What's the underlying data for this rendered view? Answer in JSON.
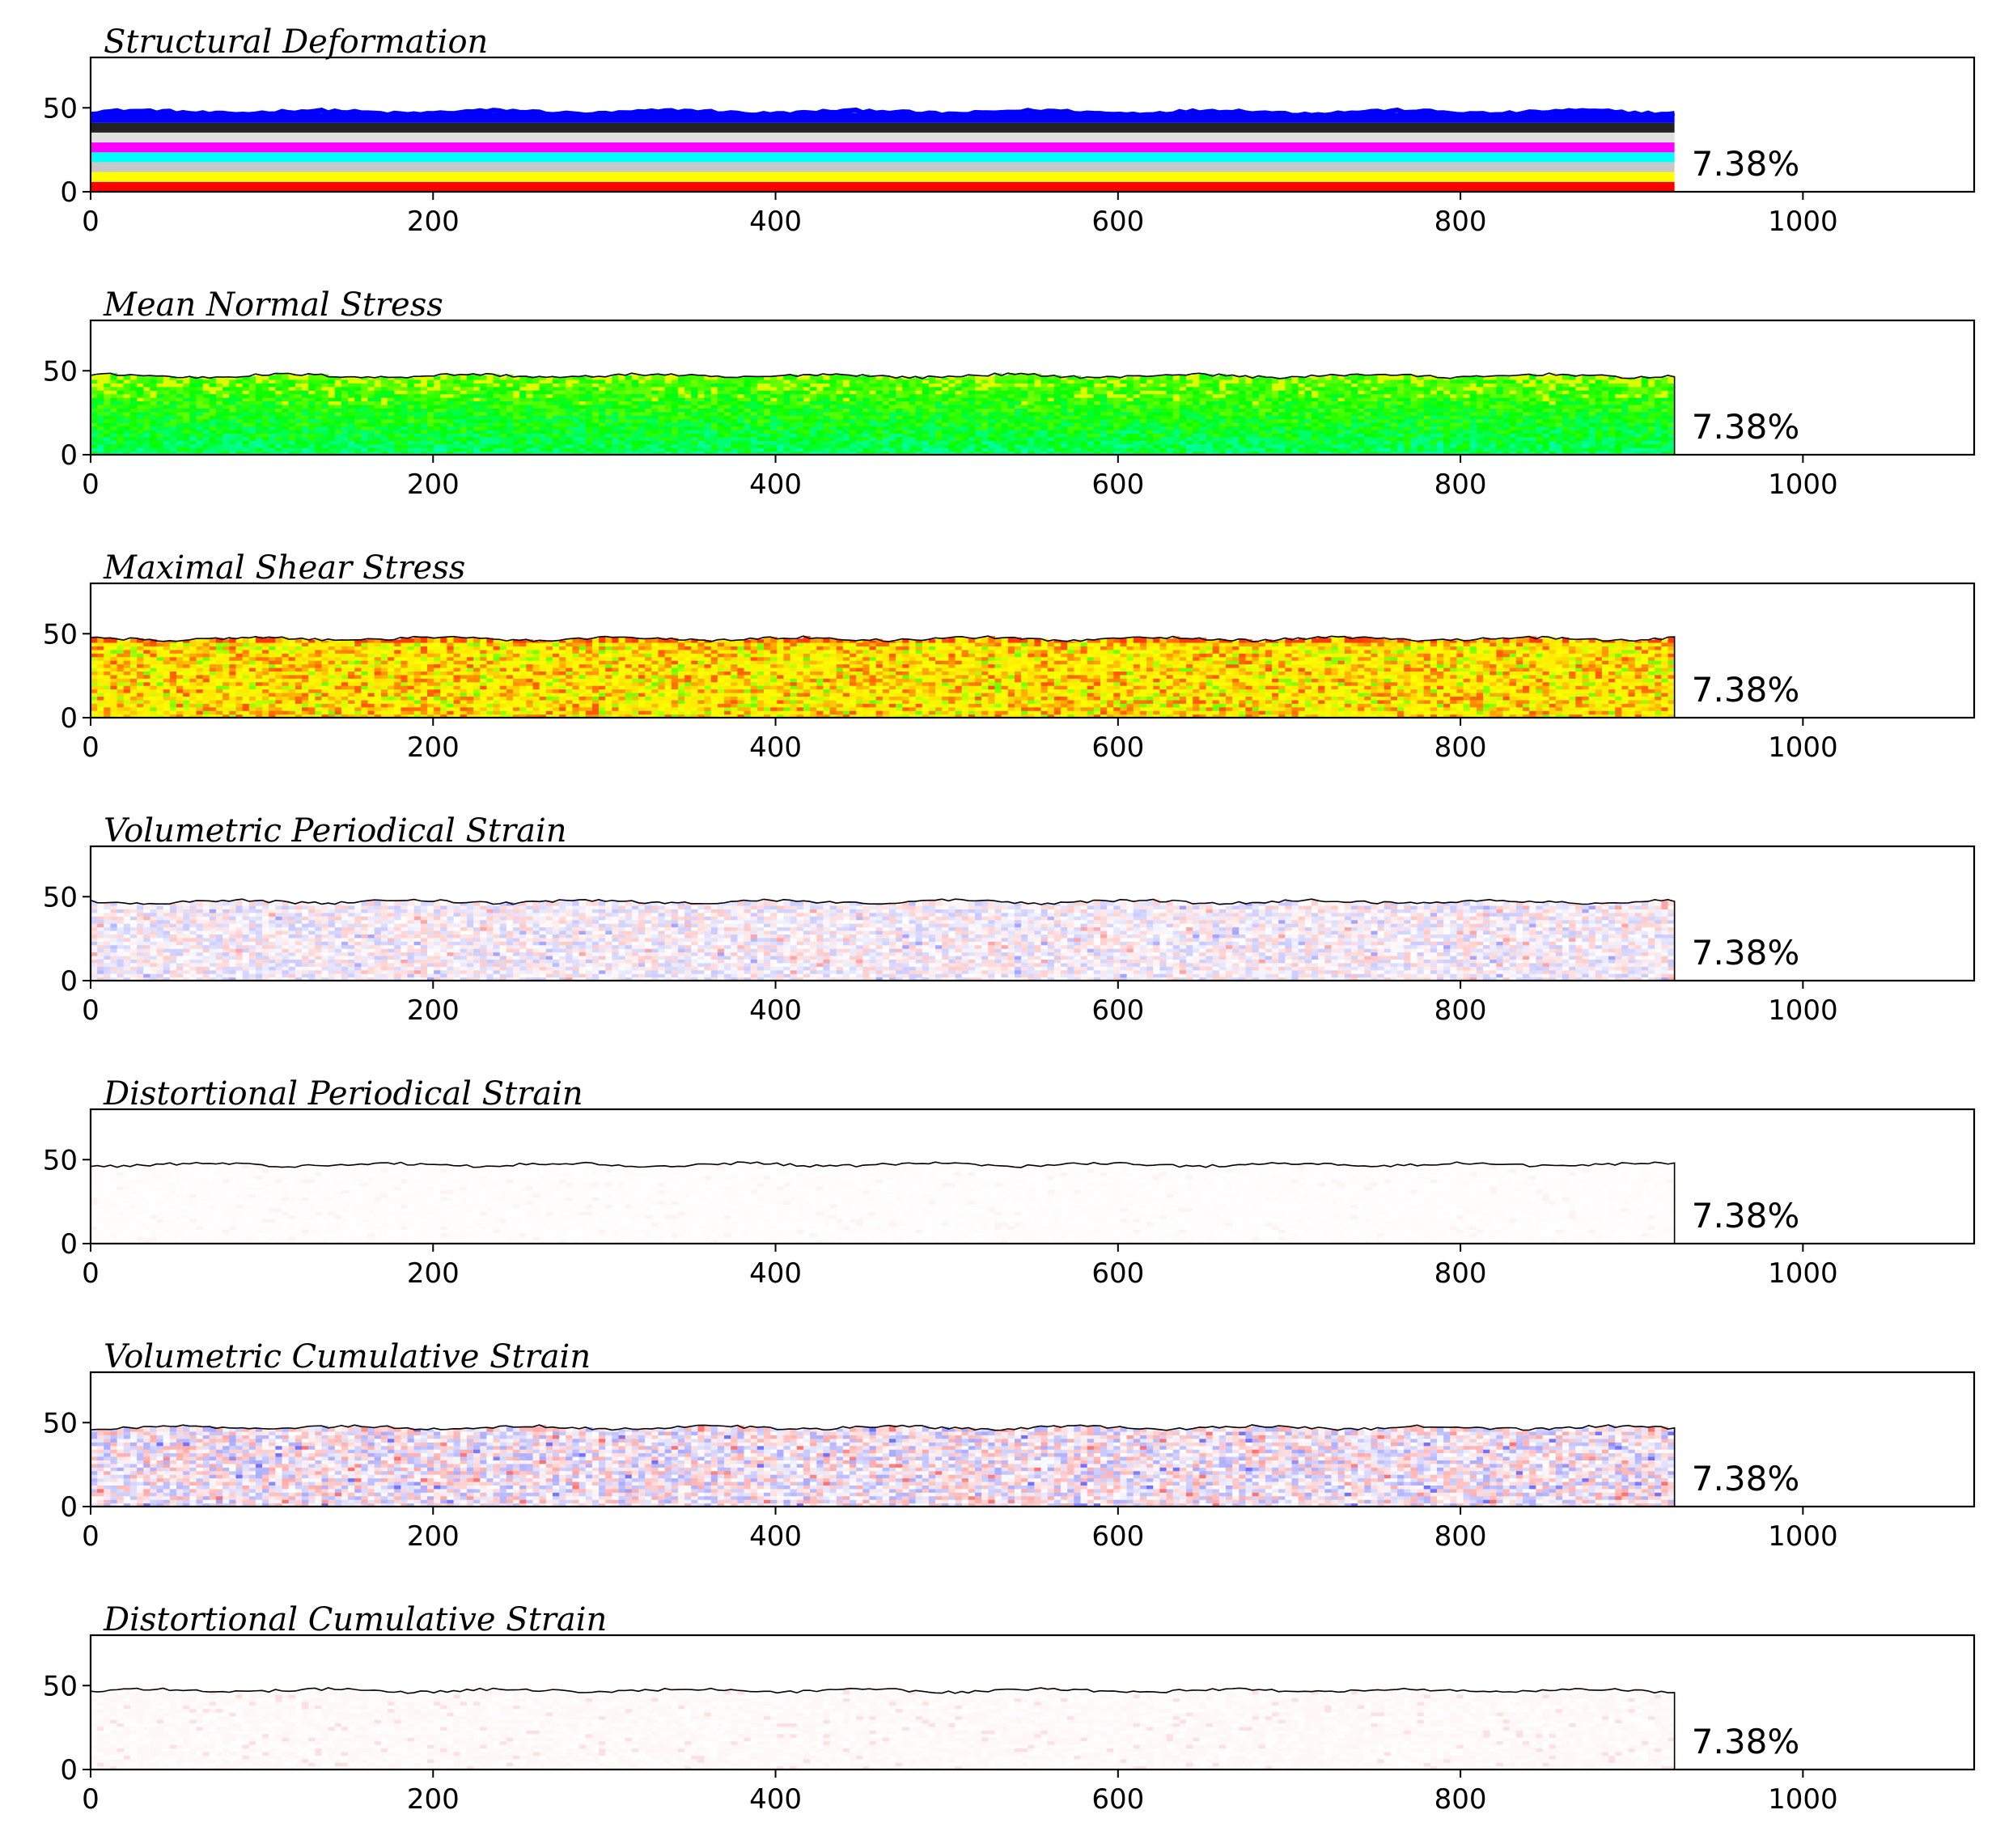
{
  "chart_data": [
    {
      "type": "heatmap",
      "title": "Structural Deformation",
      "colormap": "layers",
      "layer_colors": [
        "#ff0000",
        "#ffff00",
        "#c8c8c8",
        "#00ffff",
        "#ff00ff",
        "#e0e0e0",
        "#222222",
        "#0000ff"
      ],
      "xlim": [
        0,
        1100
      ],
      "ylim": [
        0,
        80
      ],
      "xticks": [
        0,
        200,
        400,
        600,
        800,
        1000
      ],
      "yticks": [
        0,
        50
      ],
      "domain_x": [
        0,
        925
      ],
      "surface_height": 47,
      "annotation": "7.38%"
    },
    {
      "type": "heatmap",
      "title": "Mean Normal Stress",
      "colormap": "green-cyan",
      "xlim": [
        0,
        1100
      ],
      "ylim": [
        0,
        80
      ],
      "xticks": [
        0,
        200,
        400,
        600,
        800,
        1000
      ],
      "yticks": [
        0,
        50
      ],
      "domain_x": [
        0,
        925
      ],
      "surface_height": 47,
      "annotation": "7.38%"
    },
    {
      "type": "heatmap",
      "title": "Maximal Shear Stress",
      "colormap": "red-yellow-green",
      "xlim": [
        0,
        1100
      ],
      "ylim": [
        0,
        80
      ],
      "xticks": [
        0,
        200,
        400,
        600,
        800,
        1000
      ],
      "yticks": [
        0,
        50
      ],
      "domain_x": [
        0,
        925
      ],
      "surface_height": 47,
      "annotation": "7.38%"
    },
    {
      "type": "heatmap",
      "title": "Volumetric Periodical Strain",
      "colormap": "bwr",
      "xlim": [
        0,
        1100
      ],
      "ylim": [
        0,
        80
      ],
      "xticks": [
        0,
        200,
        400,
        600,
        800,
        1000
      ],
      "yticks": [
        0,
        50
      ],
      "domain_x": [
        0,
        925
      ],
      "surface_height": 47,
      "annotation": "7.38%"
    },
    {
      "type": "heatmap",
      "title": "Distortional Periodical Strain",
      "colormap": "white-red-faint",
      "xlim": [
        0,
        1100
      ],
      "ylim": [
        0,
        80
      ],
      "xticks": [
        0,
        200,
        400,
        600,
        800,
        1000
      ],
      "yticks": [
        0,
        50
      ],
      "domain_x": [
        0,
        925
      ],
      "surface_height": 47,
      "annotation": "7.38%"
    },
    {
      "type": "heatmap",
      "title": "Volumetric Cumulative Strain",
      "colormap": "bwr-strong",
      "xlim": [
        0,
        1100
      ],
      "ylim": [
        0,
        80
      ],
      "xticks": [
        0,
        200,
        400,
        600,
        800,
        1000
      ],
      "yticks": [
        0,
        50
      ],
      "domain_x": [
        0,
        925
      ],
      "surface_height": 47,
      "annotation": "7.38%"
    },
    {
      "type": "heatmap",
      "title": "Distortional Cumulative Strain",
      "colormap": "white-red",
      "xlim": [
        0,
        1100
      ],
      "ylim": [
        0,
        80
      ],
      "xticks": [
        0,
        200,
        400,
        600,
        800,
        1000
      ],
      "yticks": [
        0,
        50
      ],
      "domain_x": [
        0,
        925
      ],
      "surface_height": 47,
      "annotation": "7.38%"
    }
  ]
}
